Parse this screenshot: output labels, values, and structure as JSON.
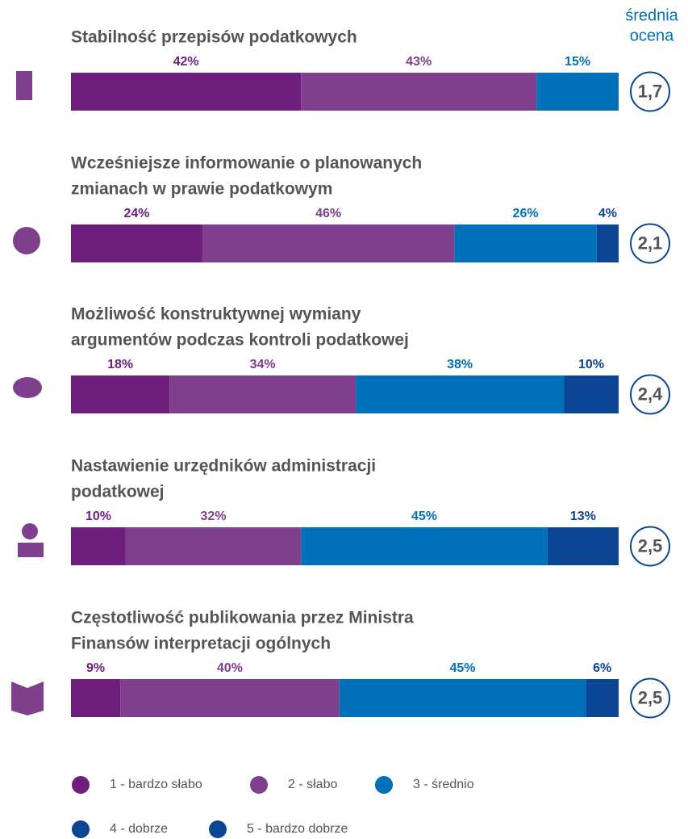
{
  "chart_data": {
    "type": "stacked-bar-horizontal",
    "average_title": [
      "średnia",
      "ocena"
    ],
    "categories": [
      [
        "Stabilność przepisów podatkowych"
      ],
      [
        "Wcześniejsze informowanie o planowanych",
        "zmianach w prawie podatkowym"
      ],
      [
        "Możliwość konstruktywnej wymiany",
        "argumentów podczas kontroli podatkowej"
      ],
      [
        "Nastawienie urzędników administracji",
        "podatkowej"
      ],
      [
        "Częstotliwość publikowania przez Ministra",
        "Finansów interpretacji ogólnych"
      ]
    ],
    "xlim": [
      0,
      100
    ],
    "series": [
      {
        "name": "1 - bardzo słabo",
        "color": "#6e1f7d",
        "values": [
          42,
          24,
          18,
          10,
          9
        ],
        "value_labels": [
          "42%",
          "24%",
          "18%",
          "10%",
          "9%"
        ]
      },
      {
        "name": "2 - słabo",
        "color": "#7e3f8c",
        "values": [
          43,
          46,
          34,
          32,
          40
        ],
        "value_labels": [
          "43%",
          "46%",
          "34%",
          "32%",
          "40%"
        ]
      },
      {
        "name": "3 - średnio",
        "color": "#0070b8",
        "values": [
          15,
          26,
          38,
          45,
          45
        ],
        "value_labels": [
          "15%",
          "26%",
          "38%",
          "45%",
          "45%"
        ]
      },
      {
        "name": "4 - dobrze",
        "color": "#0b4594",
        "values": [
          0,
          4,
          10,
          13,
          6
        ],
        "value_labels": [
          null,
          "4%",
          "10%",
          "13%",
          "6%"
        ]
      },
      {
        "name": "5 - bardzo dobrze",
        "color": "#0b4594",
        "values": [
          0,
          0,
          0,
          0,
          0
        ],
        "value_labels": [
          null,
          null,
          null,
          null,
          null
        ]
      }
    ],
    "averages": [
      1.7,
      2.1,
      2.4,
      2.5,
      2.5
    ],
    "average_labels": [
      "1,7",
      "2,1",
      "2,4",
      "2,5",
      "2,5"
    ]
  }
}
